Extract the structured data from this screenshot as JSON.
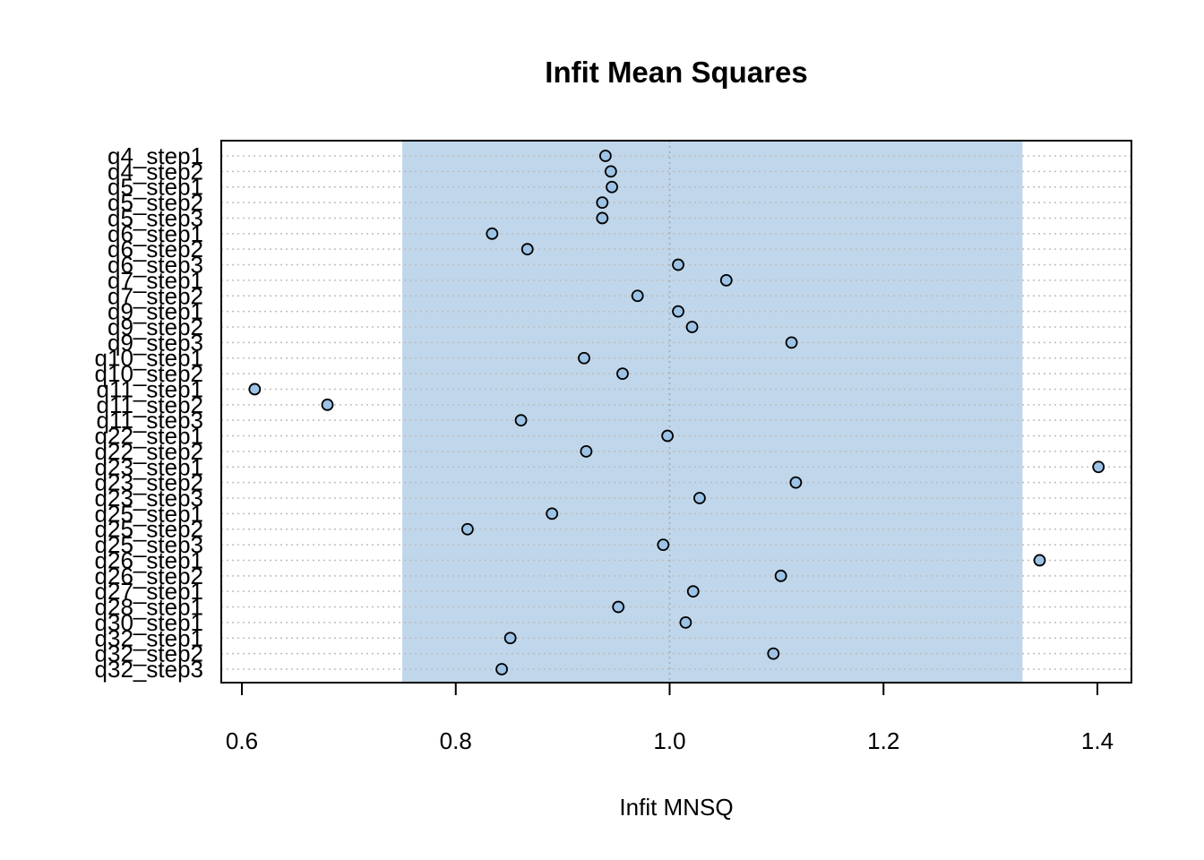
{
  "chart_data": {
    "type": "scatter",
    "title": "Infit Mean Squares",
    "xlabel": "Infit MNSQ",
    "ylabel": "",
    "xlim": [
      0.58,
      1.43
    ],
    "xticks": [
      0.6,
      0.8,
      1.0,
      1.2,
      1.4
    ],
    "xtick_labels": [
      "0.6",
      "0.8",
      "1.0",
      "1.2",
      "1.4"
    ],
    "reference_line": 1.0,
    "acceptable_band": [
      0.75,
      1.33
    ],
    "colors": {
      "band": "#c0d6ea",
      "point_fill": "#9dc3e6",
      "point_stroke": "#000000",
      "grid": "#bdbdbd",
      "reference": "#a8a8a8"
    },
    "categories": [
      "q4_step1",
      "q4_step2",
      "q5_step1",
      "q5_step2",
      "q5_step3",
      "q6_step1",
      "q6_step2",
      "q6_step3",
      "q7_step1",
      "q7_step2",
      "q9_step1",
      "q9_step2",
      "q9_step3",
      "q10_step1",
      "q10_step2",
      "q11_step1",
      "q11_step2",
      "q11_step3",
      "q22_step1",
      "q22_step2",
      "q23_step1",
      "q23_step2",
      "q23_step3",
      "q25_step1",
      "q25_step2",
      "q25_step3",
      "q26_step1",
      "q26_step2",
      "q27_step1",
      "q28_step1",
      "q30_step1",
      "q32_step1",
      "q32_step2",
      "q32_step3"
    ],
    "values": [
      0.94,
      0.945,
      0.946,
      0.937,
      0.937,
      0.834,
      0.867,
      1.008,
      1.053,
      0.97,
      1.008,
      1.021,
      1.114,
      0.92,
      0.956,
      0.612,
      0.68,
      0.861,
      0.998,
      0.922,
      1.401,
      1.118,
      1.028,
      0.89,
      0.811,
      0.994,
      1.346,
      1.104,
      1.022,
      0.952,
      1.015,
      0.851,
      1.097,
      0.843
    ]
  }
}
